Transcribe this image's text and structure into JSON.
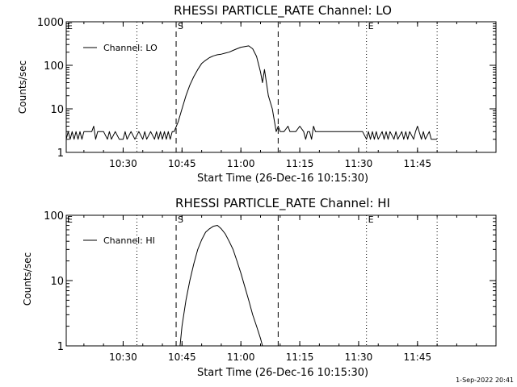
{
  "footer_timestamp": "1-Sep-2022 20:41",
  "chart_data": [
    {
      "type": "line",
      "title": "RHESSI PARTICLE_RATE Channel: LO",
      "xlabel": "Start Time (26-Dec-16 10:15:30)",
      "ylabel": "Counts/sec",
      "y_scale": "log",
      "ylim": [
        1,
        1000
      ],
      "xlim": [
        "10:15:30",
        "12:05:00"
      ],
      "x_ticks": [
        "10:30",
        "10:45",
        "11:00",
        "11:15",
        "11:30",
        "11:45"
      ],
      "y_ticks": [
        "1",
        "10",
        "100",
        "1000"
      ],
      "legend": {
        "placement": "top-left",
        "entries": [
          "Channel: LO"
        ]
      },
      "vlines": [
        {
          "time": "10:33:30",
          "style": "dotted",
          "label": ""
        },
        {
          "time": "10:43:30",
          "style": "dashed",
          "label": "S"
        },
        {
          "time": "11:09:30",
          "style": "dashed",
          "label": ""
        },
        {
          "time": "11:32:00",
          "style": "dotted",
          "label": "E"
        },
        {
          "time": "11:50:00",
          "style": "dotted",
          "label": ""
        }
      ],
      "edge_labels": [
        {
          "time": "10:15:30",
          "label": "E"
        }
      ],
      "series": [
        {
          "name": "Channel: LO",
          "x": [
            "10:15:30",
            "10:16:00",
            "10:16:30",
            "10:17:00",
            "10:17:30",
            "10:18:00",
            "10:18:30",
            "10:19:00",
            "10:19:30",
            "10:20:00",
            "10:21:00",
            "10:22:00",
            "10:22:30",
            "10:23:00",
            "10:23:30",
            "10:24:00",
            "10:25:00",
            "10:26:00",
            "10:26:30",
            "10:27:00",
            "10:28:00",
            "10:29:00",
            "10:30:00",
            "10:30:30",
            "10:31:00",
            "10:32:00",
            "10:33:00",
            "10:34:00",
            "10:35:00",
            "10:35:30",
            "10:36:00",
            "10:37:00",
            "10:38:00",
            "10:38:30",
            "10:39:00",
            "10:39:30",
            "10:40:00",
            "10:40:30",
            "10:41:00",
            "10:41:30",
            "10:42:00",
            "10:42:30",
            "10:43:00",
            "10:44:00",
            "10:45:00",
            "10:46:00",
            "10:47:00",
            "10:48:00",
            "10:49:00",
            "10:50:00",
            "10:51:00",
            "10:52:00",
            "10:53:00",
            "10:54:00",
            "10:55:00",
            "10:56:00",
            "10:57:00",
            "10:58:00",
            "10:59:00",
            "11:00:00",
            "11:01:00",
            "11:02:00",
            "11:03:00",
            "11:04:00",
            "11:05:00",
            "11:05:30",
            "11:06:00",
            "11:06:30",
            "11:07:00",
            "11:08:00",
            "11:09:00",
            "11:09:30",
            "11:10:00",
            "11:11:00",
            "11:12:00",
            "11:12:30",
            "11:13:00",
            "11:14:00",
            "11:15:00",
            "11:16:00",
            "11:16:30",
            "11:17:00",
            "11:17:30",
            "11:18:00",
            "11:18:30",
            "11:19:00",
            "11:20:00",
            "11:21:00",
            "11:22:00",
            "11:24:00",
            "11:26:00",
            "11:28:00",
            "11:30:00",
            "11:31:00",
            "11:32:00",
            "11:32:30",
            "11:33:00",
            "11:33:30",
            "11:34:00",
            "11:34:30",
            "11:35:00",
            "11:36:00",
            "11:36:30",
            "11:37:00",
            "11:37:30",
            "11:38:00",
            "11:39:00",
            "11:39:30",
            "11:40:00",
            "11:41:00",
            "11:41:30",
            "11:42:00",
            "11:42:30",
            "11:43:00",
            "11:44:00",
            "11:44:30",
            "11:45:00",
            "11:46:00",
            "11:46:30",
            "11:47:00",
            "11:48:00",
            "11:48:30",
            "11:49:00",
            "11:50:00"
          ],
          "y": [
            2,
            3,
            2,
            3,
            2,
            3,
            2,
            3,
            2,
            3,
            3,
            3,
            4,
            2,
            3,
            3,
            3,
            2,
            3,
            2,
            3,
            2,
            2,
            3,
            2,
            3,
            2,
            3,
            2,
            3,
            2,
            3,
            2,
            3,
            2,
            3,
            2,
            3,
            2,
            3,
            2,
            3,
            3,
            5,
            10,
            20,
            35,
            55,
            80,
            110,
            130,
            150,
            165,
            175,
            180,
            190,
            200,
            220,
            240,
            260,
            270,
            280,
            240,
            160,
            70,
            40,
            80,
            40,
            20,
            10,
            3,
            4,
            3,
            3,
            4,
            3,
            3,
            3,
            4,
            3,
            2,
            3,
            3,
            2,
            4,
            3,
            3,
            3,
            3,
            3,
            3,
            3,
            3,
            3,
            2,
            3,
            2,
            3,
            2,
            3,
            2,
            3,
            2,
            3,
            2,
            3,
            2,
            3,
            2,
            3,
            2,
            3,
            2,
            3,
            2,
            3,
            4,
            2,
            3,
            2,
            3,
            2,
            2,
            2
          ]
        }
      ]
    },
    {
      "type": "line",
      "title": "RHESSI PARTICLE_RATE Channel: HI",
      "xlabel": "Start Time (26-Dec-16 10:15:30)",
      "ylabel": "Counts/sec",
      "y_scale": "log",
      "ylim": [
        1,
        100
      ],
      "xlim": [
        "10:15:30",
        "12:05:00"
      ],
      "x_ticks": [
        "10:30",
        "10:45",
        "11:00",
        "11:15",
        "11:30",
        "11:45"
      ],
      "y_ticks": [
        "1",
        "10",
        "100"
      ],
      "legend": {
        "placement": "top-left",
        "entries": [
          "Channel: HI"
        ]
      },
      "vlines": [
        {
          "time": "10:33:30",
          "style": "dotted",
          "label": ""
        },
        {
          "time": "10:43:30",
          "style": "dashed",
          "label": "S"
        },
        {
          "time": "11:09:30",
          "style": "dashed",
          "label": ""
        },
        {
          "time": "11:32:00",
          "style": "dotted",
          "label": "E"
        },
        {
          "time": "11:50:00",
          "style": "dotted",
          "label": ""
        }
      ],
      "edge_labels": [
        {
          "time": "10:15:30",
          "label": "E"
        }
      ],
      "series": [
        {
          "name": "Channel: HI",
          "x": [
            "10:44:30",
            "10:45:00",
            "10:46:00",
            "10:47:00",
            "10:48:00",
            "10:49:00",
            "10:50:00",
            "10:51:00",
            "10:52:00",
            "10:53:00",
            "10:54:00",
            "10:55:00",
            "10:56:00",
            "10:57:00",
            "10:58:00",
            "10:59:00",
            "11:00:00",
            "11:01:00",
            "11:02:00",
            "11:03:00",
            "11:04:00",
            "11:05:00",
            "11:05:30"
          ],
          "y": [
            1,
            2,
            5,
            10,
            18,
            30,
            42,
            55,
            62,
            68,
            70,
            62,
            52,
            40,
            30,
            20,
            13,
            8,
            5,
            3,
            2,
            1.3,
            1
          ]
        }
      ]
    }
  ]
}
